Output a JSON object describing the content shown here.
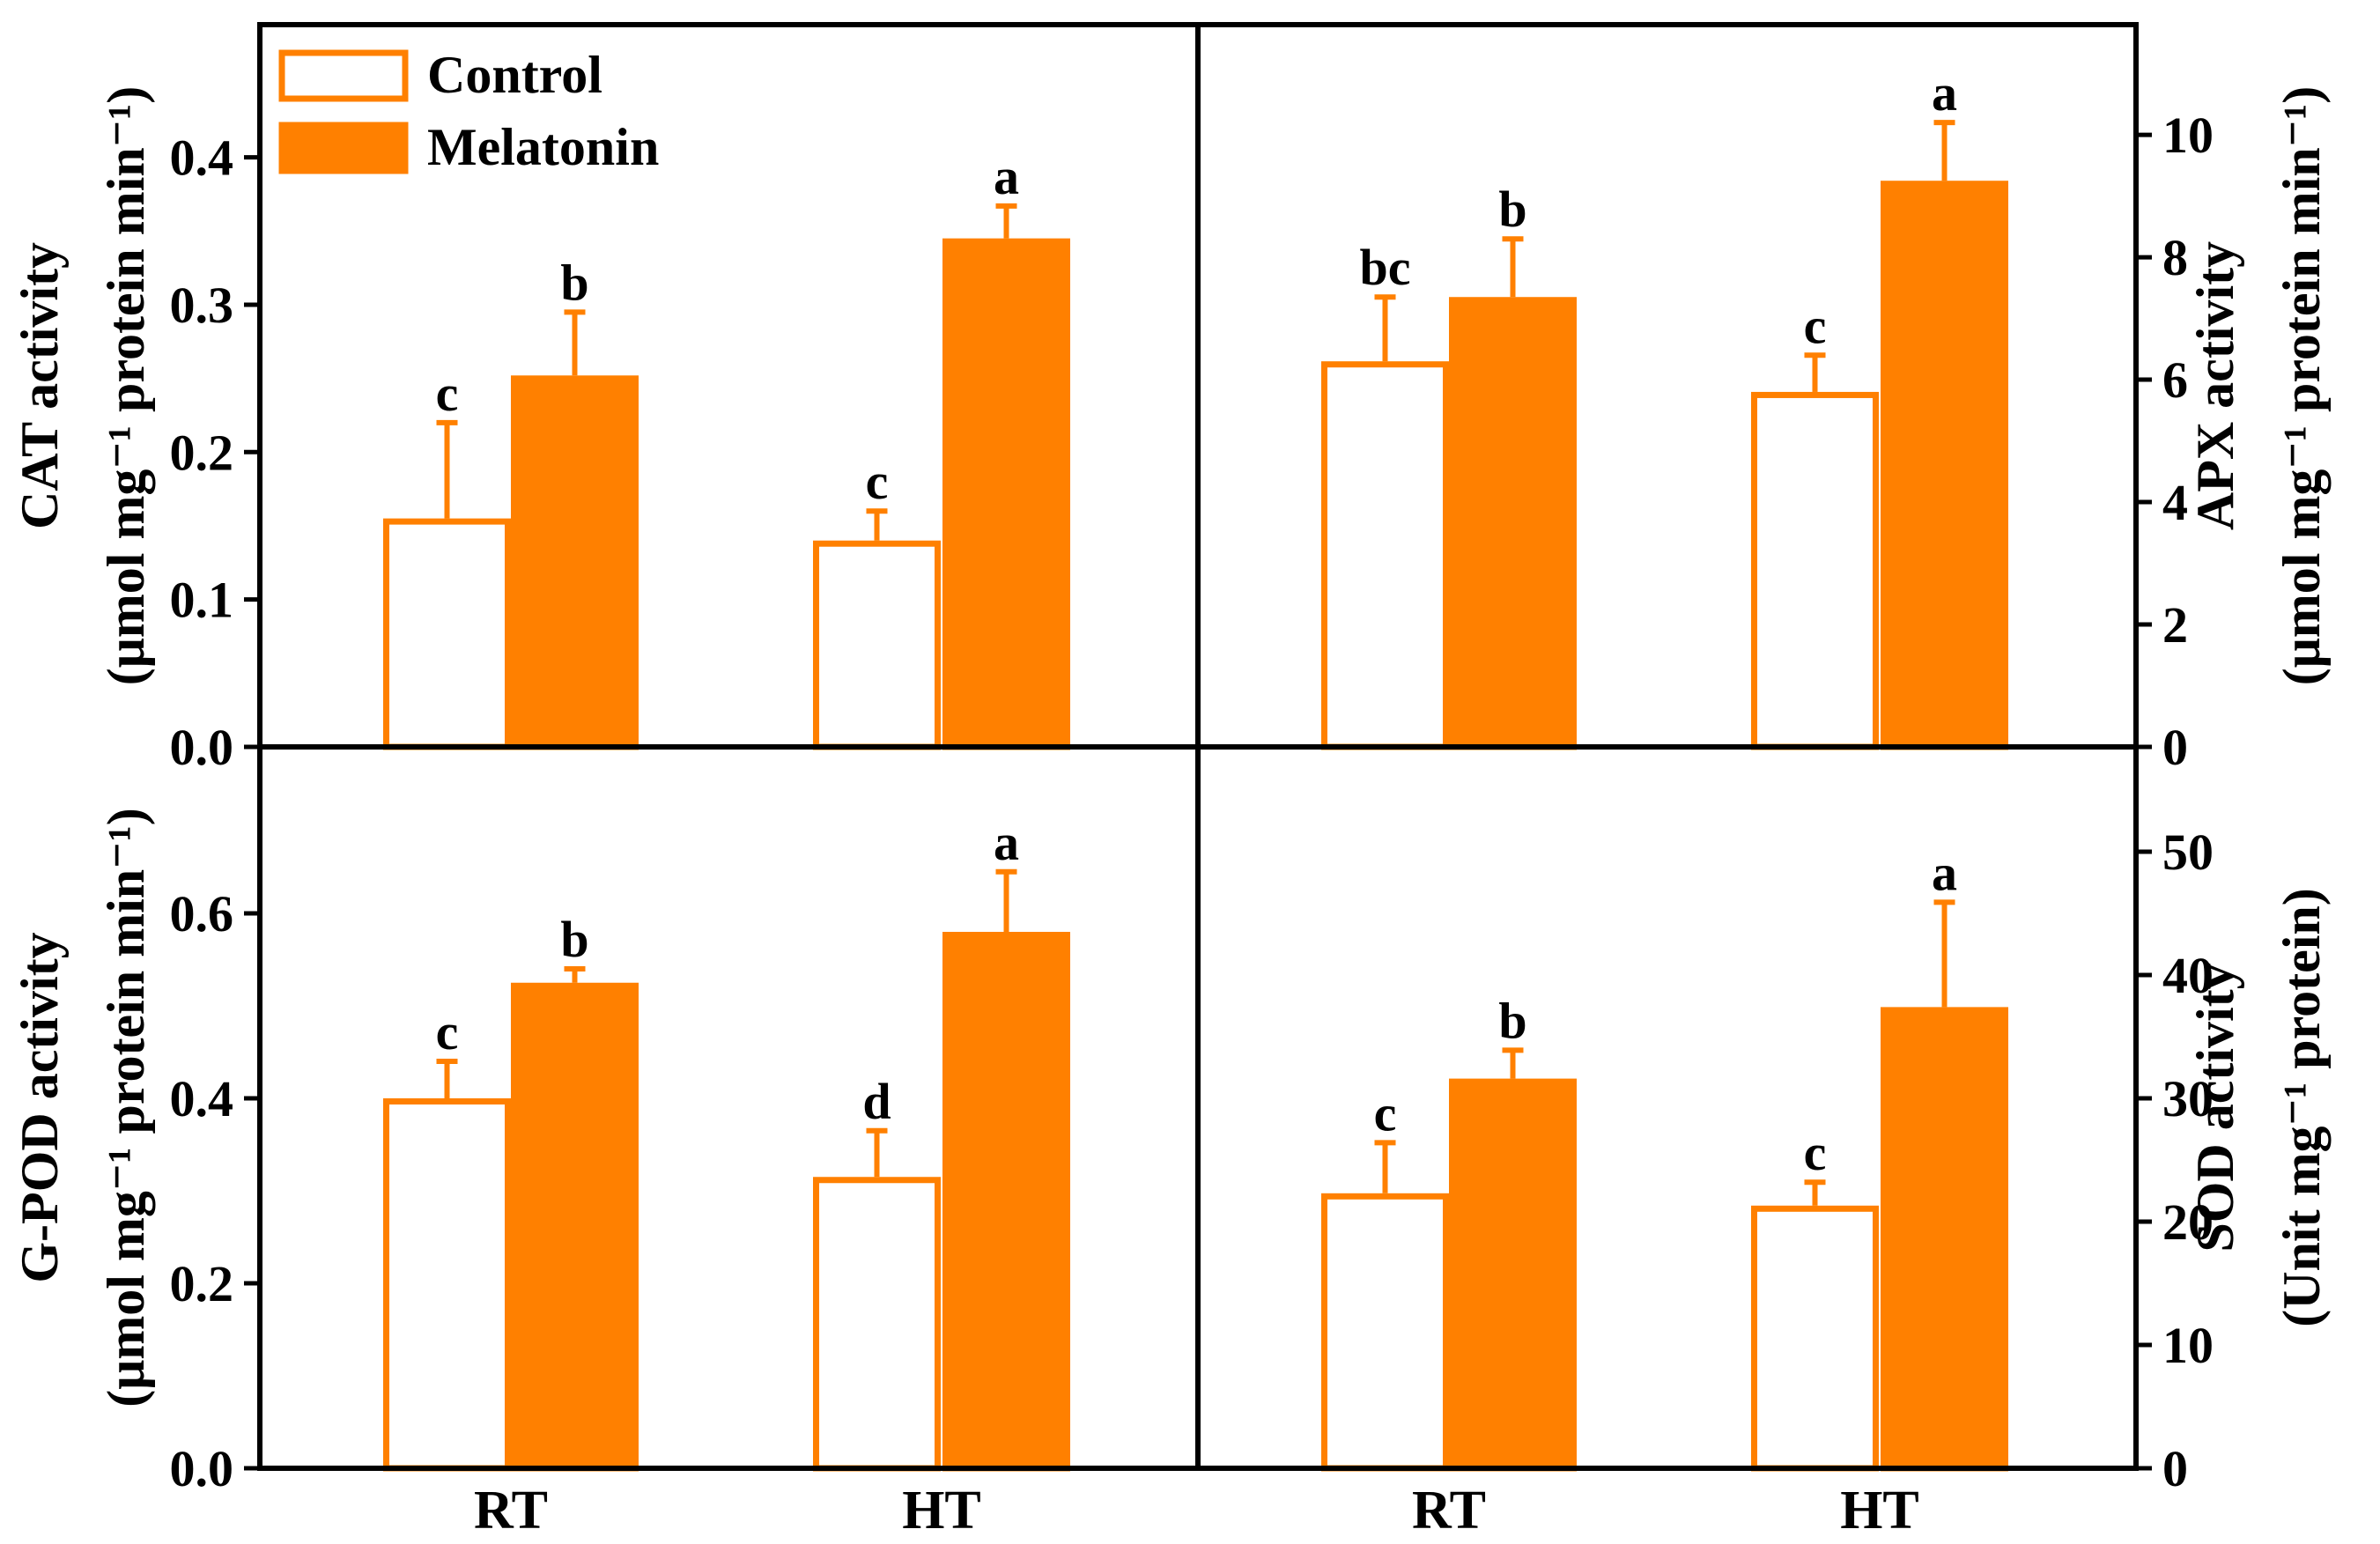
{
  "colors": {
    "melatonin_fill": "#ff8000",
    "control_edge": "#ff8000",
    "axis": "#000000"
  },
  "legend": {
    "items": [
      {
        "label": "Control",
        "style": "open"
      },
      {
        "label": "Melatonin",
        "style": "filled"
      }
    ]
  },
  "chart_data": [
    {
      "id": "cat",
      "type": "bar",
      "panel": "top-left",
      "categories": [
        "RT",
        "HT"
      ],
      "series": [
        {
          "name": "Control",
          "values": [
            0.155,
            0.14
          ],
          "errors": [
            0.065,
            0.02
          ],
          "letters": [
            "c",
            "c"
          ]
        },
        {
          "name": "Melatonin",
          "values": [
            0.252,
            0.345
          ],
          "errors": [
            0.043,
            0.022
          ],
          "letters": [
            "b",
            "a"
          ]
        }
      ],
      "ylabel_line1": "CAT activity",
      "ylabel_line2": "(μmol mg⁻¹ protein min⁻¹)",
      "ylim": [
        0,
        0.49
      ],
      "yticks": [
        0.0,
        0.1,
        0.2,
        0.3,
        0.4
      ],
      "tick_labels": [
        "0.0",
        "0.1",
        "0.2",
        "0.3",
        "0.4"
      ],
      "axis_side": "left",
      "show_x_labels": false
    },
    {
      "id": "apx",
      "type": "bar",
      "panel": "top-right",
      "categories": [
        "RT",
        "HT"
      ],
      "series": [
        {
          "name": "Control",
          "values": [
            6.3,
            5.8
          ],
          "errors": [
            1.05,
            0.6
          ],
          "letters": [
            "bc",
            "c"
          ]
        },
        {
          "name": "Melatonin",
          "values": [
            7.35,
            9.25
          ],
          "errors": [
            0.95,
            0.95
          ],
          "letters": [
            "b",
            "a"
          ]
        }
      ],
      "ylabel_line1": "APX activity",
      "ylabel_line2": "(μmol mg⁻¹ protein min⁻¹)",
      "ylim": [
        0,
        11.8
      ],
      "yticks": [
        0,
        2,
        4,
        6,
        8,
        10
      ],
      "tick_labels": [
        "0",
        "2",
        "4",
        "6",
        "8",
        "10"
      ],
      "axis_side": "right",
      "show_x_labels": false
    },
    {
      "id": "gpod",
      "type": "bar",
      "panel": "bottom-left",
      "categories": [
        "RT",
        "HT"
      ],
      "series": [
        {
          "name": "Control",
          "values": [
            0.4,
            0.315
          ],
          "errors": [
            0.04,
            0.05
          ],
          "letters": [
            "c",
            "d"
          ]
        },
        {
          "name": "Melatonin",
          "values": [
            0.525,
            0.58
          ],
          "errors": [
            0.015,
            0.065
          ],
          "letters": [
            "b",
            "a"
          ]
        }
      ],
      "ylabel_line1": "G-POD activity",
      "ylabel_line2": "(μmol mg⁻¹ protein min⁻¹)",
      "ylim": [
        0,
        0.78
      ],
      "yticks": [
        0.0,
        0.2,
        0.4,
        0.6
      ],
      "tick_labels": [
        "0.0",
        "0.2",
        "0.4",
        "0.6"
      ],
      "axis_side": "left",
      "show_x_labels": true
    },
    {
      "id": "sod",
      "type": "bar",
      "panel": "bottom-right",
      "categories": [
        "RT",
        "HT"
      ],
      "series": [
        {
          "name": "Control",
          "values": [
            22.3,
            21.3
          ],
          "errors": [
            4.1,
            1.9
          ],
          "letters": [
            "c",
            "c"
          ]
        },
        {
          "name": "Melatonin",
          "values": [
            31.6,
            37.4
          ],
          "errors": [
            2.3,
            8.5
          ],
          "letters": [
            "b",
            "a"
          ]
        }
      ],
      "ylabel_line1": "SOD activity",
      "ylabel_line2": "(Unit mg⁻¹ protein)",
      "ylim": [
        0,
        58.5
      ],
      "yticks": [
        0,
        10,
        20,
        30,
        40,
        50
      ],
      "tick_labels": [
        "0",
        "10",
        "20",
        "30",
        "40",
        "50"
      ],
      "axis_side": "right",
      "show_x_labels": true
    }
  ]
}
